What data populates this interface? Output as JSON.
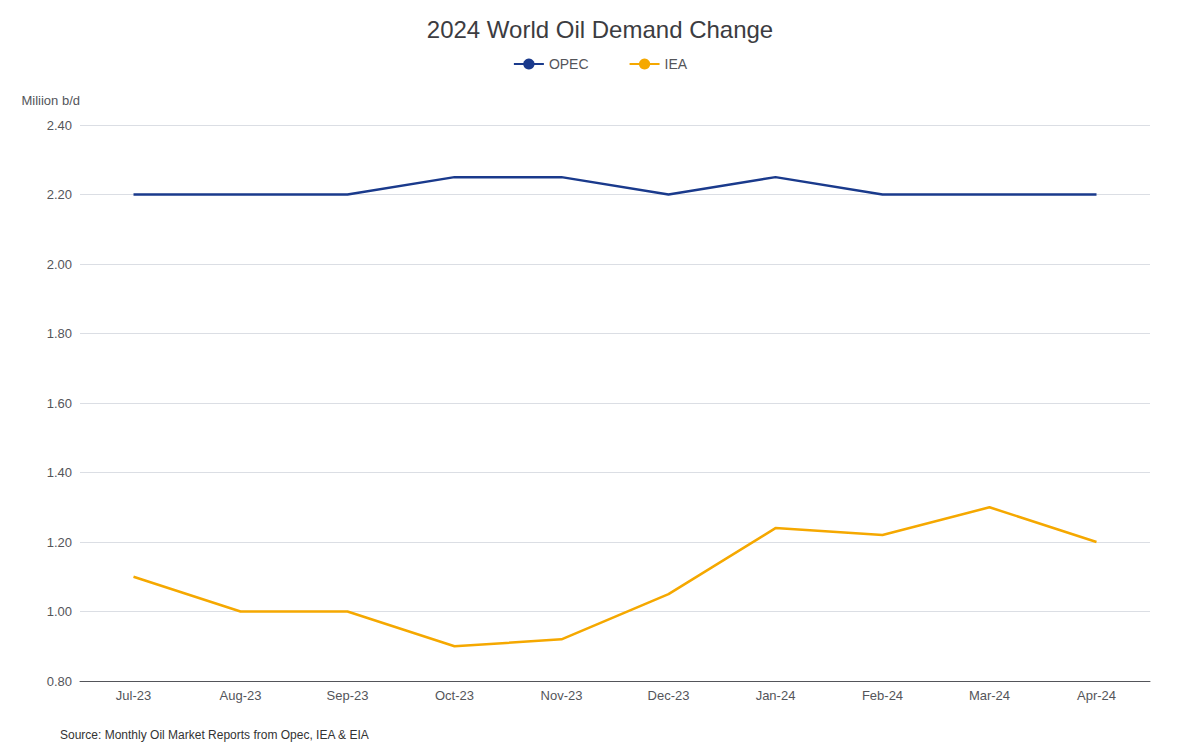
{
  "chart_data": {
    "type": "line",
    "title": "2024 World Oil Demand Change",
    "ylabel": "Miliion b/d",
    "categories": [
      "Jul-23",
      "Aug-23",
      "Sep-23",
      "Oct-23",
      "Nov-23",
      "Dec-23",
      "Jan-24",
      "Feb-24",
      "Mar-24",
      "Apr-24"
    ],
    "series": [
      {
        "name": "OPEC",
        "color": "#1a3a8c",
        "values": [
          2.2,
          2.2,
          2.2,
          2.25,
          2.25,
          2.2,
          2.25,
          2.2,
          2.2,
          2.2
        ]
      },
      {
        "name": "IEA",
        "color": "#f5a800",
        "values": [
          1.1,
          1.0,
          1.0,
          0.9,
          0.92,
          1.05,
          1.24,
          1.22,
          1.3,
          1.2
        ]
      }
    ],
    "ylim": [
      0.8,
      2.4
    ],
    "yticks": [
      {
        "value": 0.8,
        "label": "0.80"
      },
      {
        "value": 1.0,
        "label": "1.00"
      },
      {
        "value": 1.2,
        "label": "1.20"
      },
      {
        "value": 1.4,
        "label": "1.40"
      },
      {
        "value": 1.6,
        "label": "1.60"
      },
      {
        "value": 1.8,
        "label": "1.80"
      },
      {
        "value": 2.0,
        "label": "2.00"
      },
      {
        "value": 2.2,
        "label": "2.20"
      },
      {
        "value": 2.4,
        "label": "2.40"
      }
    ],
    "grid": true,
    "legend": "top",
    "annotations": [
      "Source: Monthly Oil Market Reports from Opec, IEA & EIA"
    ]
  }
}
